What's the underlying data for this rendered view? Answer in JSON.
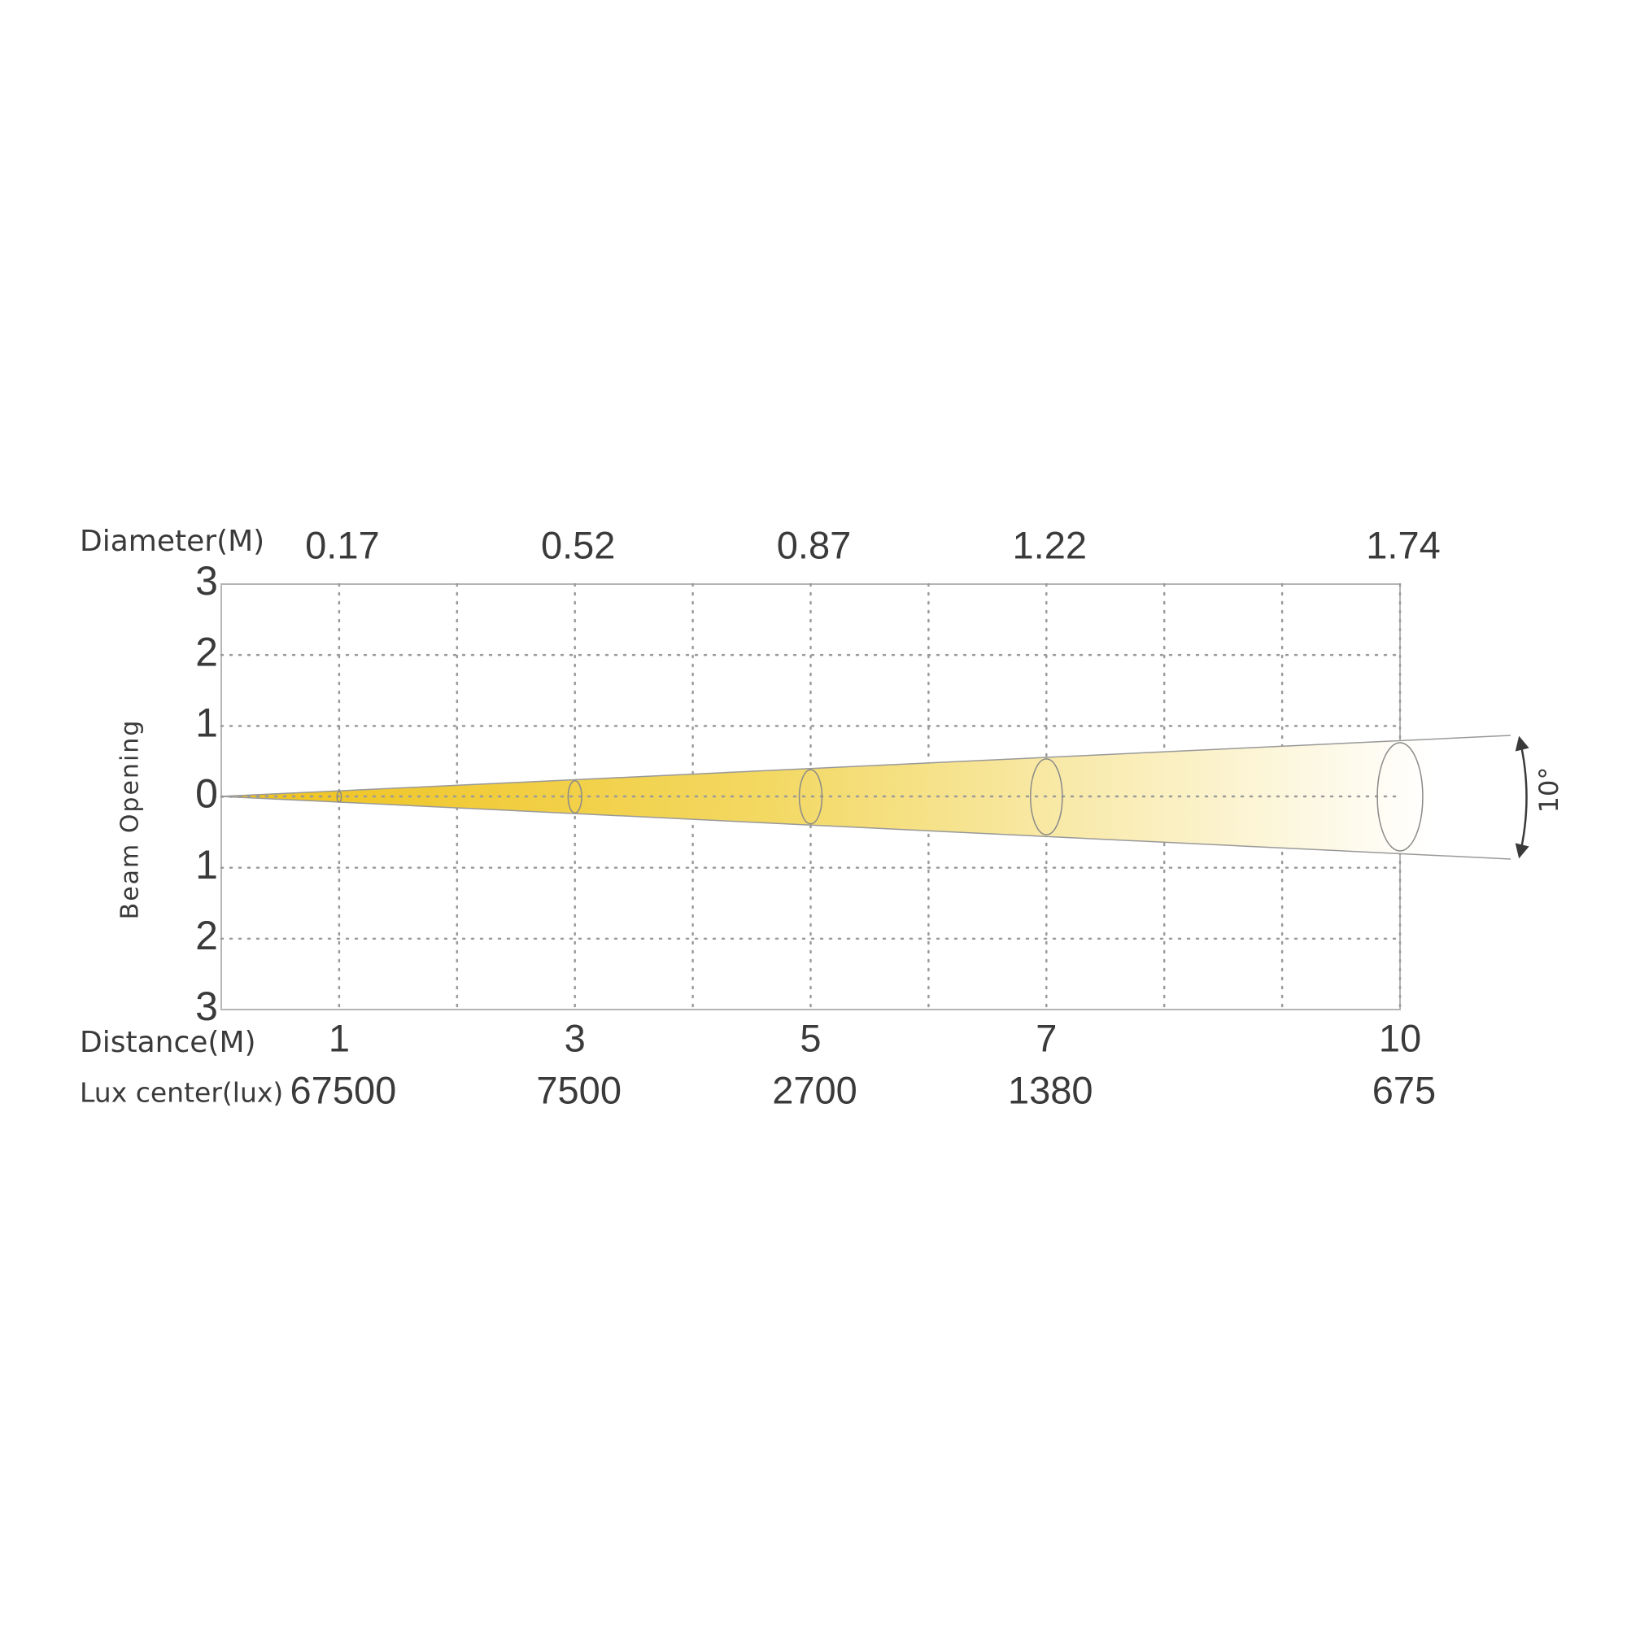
{
  "labels": {
    "diameter": "Diameter(M)",
    "distance": "Distance(M)",
    "lux": "Lux center(lux)",
    "beam_opening": "Beam Opening",
    "angle": "10°"
  },
  "distances": [
    1,
    3,
    5,
    7,
    10
  ],
  "diameters": [
    0.17,
    0.52,
    0.87,
    1.22,
    1.74
  ],
  "lux": [
    67500,
    7500,
    2700,
    1380,
    675
  ],
  "beam_ticks": [
    3,
    2,
    1,
    0,
    1,
    2,
    3
  ]
}
